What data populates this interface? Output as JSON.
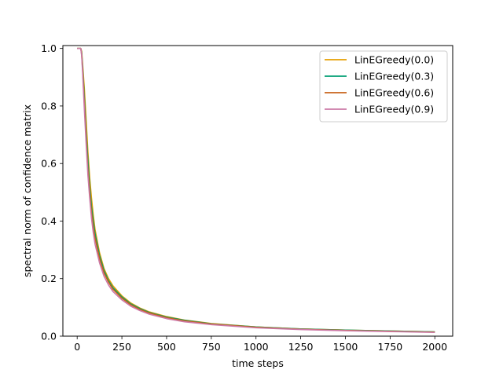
{
  "chart_data": {
    "type": "line",
    "xlabel": "time steps",
    "ylabel": "spectral norm of confidence matrix",
    "xlim": [
      -80,
      2100
    ],
    "ylim": [
      0,
      1.01
    ],
    "xticks": [
      0,
      250,
      500,
      750,
      1000,
      1250,
      1500,
      1750,
      2000
    ],
    "yticks": [
      0.0,
      0.2,
      0.4,
      0.6,
      0.8,
      1.0
    ],
    "xtick_labels": [
      "0",
      "250",
      "500",
      "750",
      "1000",
      "1250",
      "1500",
      "1750",
      "2000"
    ],
    "ytick_labels": [
      "0.0",
      "0.2",
      "0.4",
      "0.6",
      "0.8",
      "1.0"
    ],
    "grid": false,
    "legend_position": "top-right",
    "series": [
      {
        "name": "LinEGreedy(0.0)",
        "color": "#E69F00",
        "x": [
          0,
          10,
          20,
          25,
          30,
          40,
          50,
          60,
          70,
          80,
          90,
          100,
          125,
          150,
          175,
          200,
          250,
          300,
          350,
          400,
          500,
          600,
          750,
          1000,
          1250,
          1500,
          1750,
          2000
        ],
        "y": [
          1.0,
          1.0,
          1.0,
          0.99,
          0.95,
          0.86,
          0.75,
          0.64,
          0.55,
          0.48,
          0.42,
          0.37,
          0.29,
          0.235,
          0.2,
          0.175,
          0.14,
          0.115,
          0.098,
          0.085,
          0.068,
          0.056,
          0.044,
          0.032,
          0.025,
          0.021,
          0.018,
          0.015
        ]
      },
      {
        "name": "LinEGreedy(0.3)",
        "color": "#009E73",
        "x": [
          0,
          10,
          20,
          25,
          30,
          40,
          50,
          60,
          70,
          80,
          90,
          100,
          125,
          150,
          175,
          200,
          250,
          300,
          350,
          400,
          500,
          600,
          750,
          1000,
          1250,
          1500,
          1750,
          2000
        ],
        "y": [
          1.0,
          1.0,
          1.0,
          0.985,
          0.94,
          0.83,
          0.71,
          0.61,
          0.52,
          0.45,
          0.4,
          0.355,
          0.28,
          0.228,
          0.193,
          0.168,
          0.136,
          0.112,
          0.096,
          0.083,
          0.066,
          0.055,
          0.043,
          0.032,
          0.025,
          0.021,
          0.018,
          0.015
        ]
      },
      {
        "name": "LinEGreedy(0.6)",
        "color": "#C8631A",
        "x": [
          0,
          10,
          20,
          25,
          30,
          40,
          50,
          60,
          70,
          80,
          90,
          100,
          125,
          150,
          175,
          200,
          250,
          300,
          350,
          400,
          500,
          600,
          750,
          1000,
          1250,
          1500,
          1750,
          2000
        ],
        "y": [
          1.0,
          1.0,
          1.0,
          0.98,
          0.93,
          0.81,
          0.69,
          0.58,
          0.5,
          0.43,
          0.38,
          0.34,
          0.27,
          0.22,
          0.188,
          0.163,
          0.132,
          0.109,
          0.093,
          0.081,
          0.064,
          0.053,
          0.042,
          0.031,
          0.024,
          0.02,
          0.017,
          0.014
        ]
      },
      {
        "name": "LinEGreedy(0.9)",
        "color": "#CC79A7",
        "x": [
          0,
          10,
          20,
          25,
          30,
          40,
          50,
          60,
          70,
          80,
          90,
          100,
          125,
          150,
          175,
          200,
          250,
          300,
          350,
          400,
          500,
          600,
          750,
          1000,
          1250,
          1500,
          1750,
          2000
        ],
        "y": [
          1.0,
          1.0,
          1.0,
          0.975,
          0.92,
          0.79,
          0.67,
          0.56,
          0.48,
          0.41,
          0.36,
          0.32,
          0.255,
          0.208,
          0.178,
          0.155,
          0.126,
          0.104,
          0.089,
          0.077,
          0.061,
          0.05,
          0.04,
          0.029,
          0.023,
          0.019,
          0.016,
          0.013
        ]
      }
    ]
  }
}
